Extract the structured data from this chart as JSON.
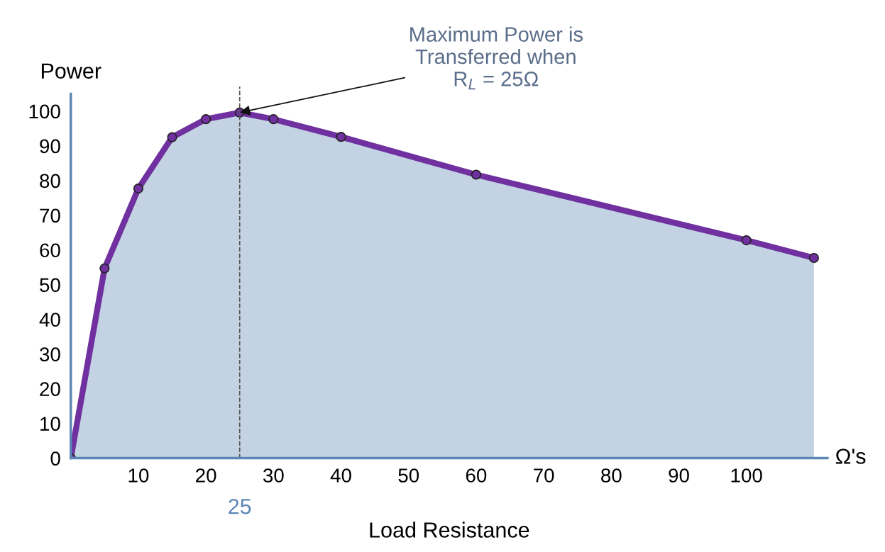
{
  "chart_data": {
    "type": "area",
    "xlabel": "Load Resistance",
    "ylabel": "Power",
    "x": [
      0,
      5,
      10,
      15,
      20,
      25,
      30,
      40,
      60,
      100,
      110
    ],
    "series": [
      {
        "color": "#7030a0",
        "values": [
          0,
          54.7,
          77.7,
          92.5,
          97.7,
          99.6,
          97.7,
          92.6,
          81.7,
          62.8,
          57.7
        ]
      }
    ],
    "xlim": [
      0,
      112
    ],
    "ylim": [
      0,
      105
    ],
    "xticks": [
      10,
      20,
      30,
      40,
      50,
      60,
      70,
      80,
      90,
      100
    ],
    "yticks": [
      0,
      10,
      20,
      30,
      40,
      50,
      60,
      70,
      80,
      90,
      100
    ],
    "ref_lines": [
      {
        "axis": "x",
        "value": 25,
        "label": "25",
        "color": "#555555",
        "line_style": "dashed"
      }
    ],
    "annotations": [
      {
        "text": "Maximum Power is\nTransferred when\nR$_{L}$ = 25Ω",
        "x": 25,
        "y": 99.6
      },
      "Ω's"
    ],
    "marker": "circle",
    "line_style": "solid",
    "grid": false,
    "legend": false
  }
}
